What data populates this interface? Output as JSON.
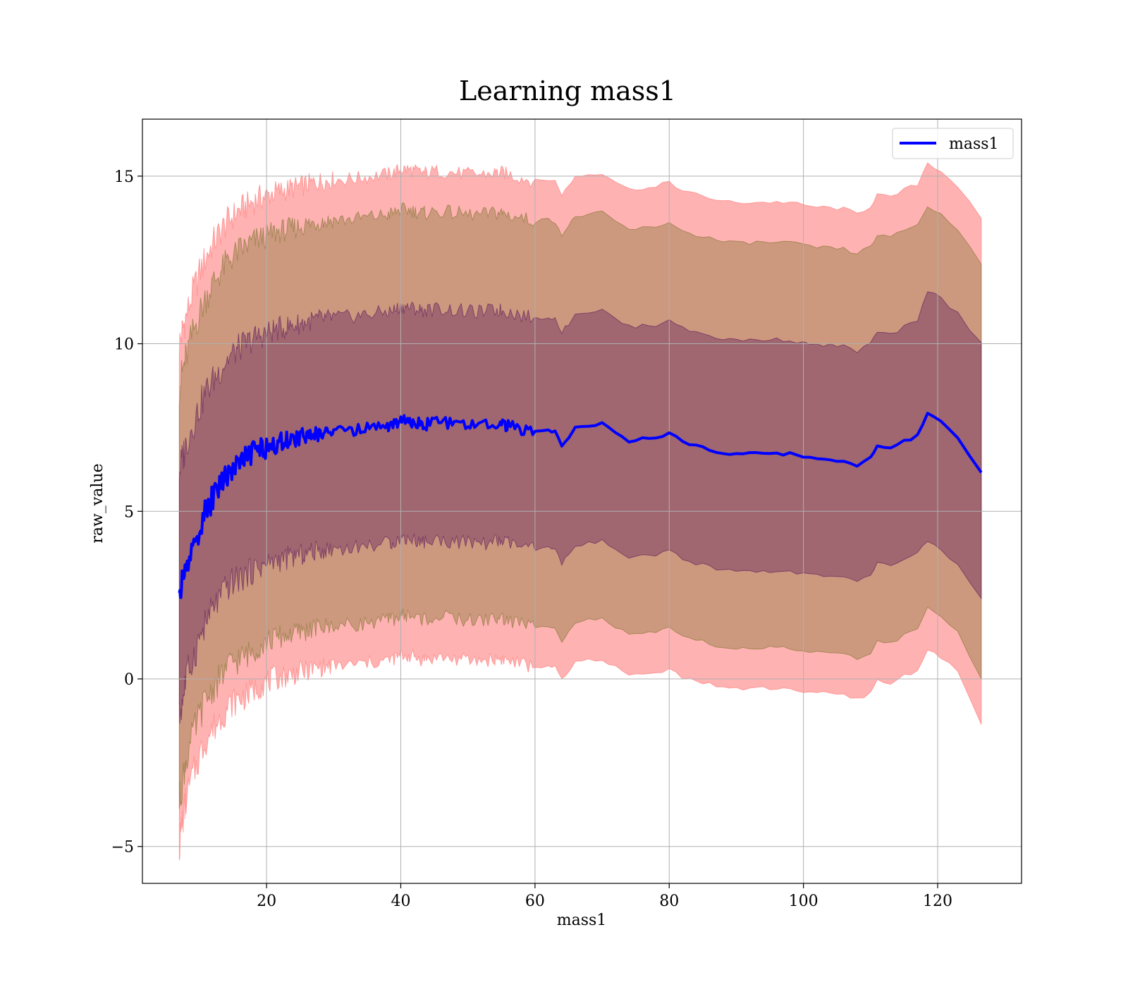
{
  "chart_data": {
    "type": "line",
    "title": "Learning mass1",
    "xlabel": "mass1",
    "ylabel": "raw_value",
    "xlim": [
      1.5,
      132.5
    ],
    "ylim": [
      -6.1,
      16.7
    ],
    "xticks": [
      20,
      40,
      60,
      80,
      100,
      120
    ],
    "yticks": [
      -5,
      0,
      5,
      10,
      15
    ],
    "ytick_labels": [
      "−5",
      "0",
      "5",
      "10",
      "15"
    ],
    "grid": true,
    "legend": {
      "placement": "top-right",
      "entries": [
        "mass1"
      ]
    },
    "series": [
      {
        "name": "mass1",
        "color": "#0000ff",
        "x": [
          7.0,
          7.5,
          8.0,
          9.0,
          10.0,
          11.0,
          12.0,
          13.0,
          14.0,
          15.0,
          16.0,
          17.0,
          18.0,
          19.0,
          20.0,
          21.0,
          22.0,
          23.0,
          24.0,
          25.0,
          26.0,
          27.0,
          28.0,
          29.0,
          30.0,
          32.0,
          34.0,
          36.0,
          38.0,
          39.0,
          40.0,
          41.0,
          42.0,
          43.0,
          44.0,
          46.0,
          48.0,
          50.0,
          52.0,
          54.0,
          55.0,
          56.0,
          58.0,
          60.0,
          62.0,
          63.0,
          64.0,
          65.0,
          66.0,
          68.0,
          70.0,
          72.0,
          74.0,
          76.0,
          78.0,
          80.0,
          82.0,
          84.0,
          86.0,
          88.0,
          90.0,
          92.0,
          94.0,
          96.0,
          98.0,
          100.0,
          102.0,
          104.0,
          106.0,
          108.0,
          110.0,
          111.0,
          113.0,
          115.0,
          117.0,
          118.5,
          120.5,
          123.0,
          126.5
        ],
        "y": [
          2.5,
          2.9,
          3.3,
          3.9,
          4.5,
          5.0,
          5.4,
          5.8,
          6.1,
          6.3,
          6.5,
          6.6,
          6.75,
          6.85,
          6.9,
          7.0,
          7.05,
          7.1,
          7.15,
          7.2,
          7.25,
          7.3,
          7.35,
          7.35,
          7.4,
          7.4,
          7.45,
          7.5,
          7.55,
          7.6,
          7.7,
          7.7,
          7.65,
          7.6,
          7.6,
          7.65,
          7.6,
          7.55,
          7.55,
          7.6,
          7.6,
          7.55,
          7.45,
          7.35,
          7.4,
          7.35,
          6.95,
          7.2,
          7.5,
          7.55,
          7.6,
          7.35,
          7.1,
          7.15,
          7.15,
          7.35,
          7.05,
          6.95,
          6.85,
          6.75,
          6.7,
          6.72,
          6.72,
          6.72,
          6.72,
          6.62,
          6.58,
          6.55,
          6.52,
          6.38,
          6.6,
          6.95,
          6.85,
          7.1,
          7.25,
          7.9,
          7.65,
          7.2,
          6.2
        ],
        "bands": [
          {
            "color": "#ff7f7f",
            "lower": [
              -5.0,
              -4.2,
              -3.6,
              -2.9,
              -2.3,
              -1.8,
              -1.5,
              -1.2,
              -0.9,
              -0.7,
              -0.6,
              -0.5,
              -0.35,
              -0.2,
              -0.1,
              0.0,
              0.05,
              0.1,
              0.15,
              0.2,
              0.25,
              0.3,
              0.35,
              0.35,
              0.4,
              0.4,
              0.45,
              0.5,
              0.55,
              0.6,
              0.7,
              0.7,
              0.65,
              0.6,
              0.6,
              0.65,
              0.6,
              0.55,
              0.55,
              0.6,
              0.6,
              0.55,
              0.45,
              0.35,
              0.4,
              0.35,
              -0.05,
              0.2,
              0.5,
              0.55,
              0.6,
              0.35,
              0.1,
              0.15,
              0.15,
              0.35,
              0.05,
              -0.05,
              -0.15,
              -0.25,
              -0.3,
              -0.28,
              -0.28,
              -0.28,
              -0.28,
              -0.38,
              -0.42,
              -0.45,
              -0.48,
              -0.62,
              -0.4,
              -0.05,
              -0.15,
              0.1,
              0.25,
              0.9,
              0.65,
              0.2,
              -1.3
            ],
            "upper": [
              10.0,
              10.4,
              10.8,
              11.5,
              12.1,
              12.6,
              13.0,
              13.3,
              13.6,
              13.8,
              14.0,
              14.1,
              14.25,
              14.35,
              14.4,
              14.5,
              14.55,
              14.6,
              14.65,
              14.7,
              14.75,
              14.8,
              14.85,
              14.85,
              14.9,
              14.9,
              14.95,
              15.0,
              15.05,
              15.1,
              15.2,
              15.2,
              15.15,
              15.1,
              15.1,
              15.15,
              15.1,
              15.05,
              15.05,
              15.1,
              15.1,
              15.05,
              14.95,
              14.85,
              14.9,
              14.85,
              14.45,
              14.7,
              15.0,
              15.05,
              15.1,
              14.85,
              14.6,
              14.65,
              14.65,
              14.85,
              14.55,
              14.45,
              14.35,
              14.25,
              14.2,
              14.22,
              14.22,
              14.22,
              14.22,
              14.12,
              14.08,
              14.05,
              14.02,
              13.88,
              14.1,
              14.45,
              14.35,
              14.6,
              14.75,
              15.4,
              15.15,
              14.7,
              13.7
            ]
          },
          {
            "color": "#8f7a3f",
            "lower": [
              -3.7,
              -3.0,
              -2.4,
              -1.7,
              -1.1,
              -0.6,
              -0.3,
              0.0,
              0.3,
              0.5,
              0.6,
              0.7,
              0.85,
              1.0,
              1.1,
              1.2,
              1.25,
              1.3,
              1.35,
              1.4,
              1.45,
              1.5,
              1.55,
              1.55,
              1.6,
              1.6,
              1.65,
              1.7,
              1.75,
              1.8,
              1.9,
              1.9,
              1.85,
              1.8,
              1.8,
              1.85,
              1.8,
              1.75,
              1.75,
              1.8,
              1.8,
              1.75,
              1.65,
              1.55,
              1.6,
              1.55,
              1.15,
              1.4,
              1.7,
              1.75,
              1.8,
              1.55,
              1.3,
              1.35,
              1.35,
              1.55,
              1.25,
              1.15,
              1.05,
              0.95,
              0.9,
              0.92,
              0.92,
              0.92,
              0.92,
              0.82,
              0.78,
              0.75,
              0.72,
              0.58,
              0.8,
              1.15,
              1.05,
              1.3,
              1.45,
              2.1,
              1.85,
              1.4,
              0.0
            ],
            "upper": [
              8.7,
              9.2,
              9.6,
              10.3,
              10.9,
              11.4,
              11.8,
              12.1,
              12.4,
              12.6,
              12.8,
              12.9,
              13.05,
              13.15,
              13.2,
              13.3,
              13.35,
              13.4,
              13.45,
              13.5,
              13.55,
              13.6,
              13.65,
              13.65,
              13.7,
              13.7,
              13.75,
              13.8,
              13.85,
              13.9,
              14.0,
              14.0,
              13.95,
              13.9,
              13.9,
              13.95,
              13.9,
              13.85,
              13.85,
              13.9,
              13.9,
              13.85,
              13.75,
              13.65,
              13.7,
              13.65,
              13.25,
              13.5,
              13.8,
              13.85,
              13.9,
              13.65,
              13.4,
              13.45,
              13.45,
              13.65,
              13.35,
              13.25,
              13.15,
              13.05,
              13.0,
              13.02,
              13.02,
              13.02,
              13.02,
              12.92,
              12.88,
              12.85,
              12.82,
              12.68,
              12.9,
              13.25,
              13.15,
              13.4,
              13.55,
              14.1,
              13.85,
              13.4,
              12.4
            ]
          },
          {
            "color": "#6a2a5f",
            "lower": [
              -1.2,
              -0.6,
              0.0,
              0.6,
              1.2,
              1.7,
              2.1,
              2.4,
              2.7,
              2.9,
              3.0,
              3.1,
              3.25,
              3.35,
              3.4,
              3.5,
              3.55,
              3.6,
              3.65,
              3.7,
              3.75,
              3.8,
              3.85,
              3.85,
              3.9,
              3.9,
              3.95,
              4.0,
              4.05,
              4.1,
              4.2,
              4.2,
              4.15,
              4.1,
              4.1,
              4.15,
              4.1,
              4.05,
              4.05,
              4.1,
              4.1,
              4.05,
              3.95,
              3.85,
              3.9,
              3.85,
              3.45,
              3.7,
              4.0,
              4.05,
              4.1,
              3.85,
              3.6,
              3.65,
              3.65,
              3.85,
              3.55,
              3.45,
              3.35,
              3.25,
              3.2,
              3.22,
              3.22,
              3.22,
              3.22,
              3.12,
              3.08,
              3.05,
              3.02,
              2.88,
              3.1,
              3.45,
              3.35,
              3.6,
              3.75,
              4.1,
              3.85,
              3.4,
              2.4
            ],
            "upper": [
              6.2,
              6.6,
              7.0,
              7.6,
              8.1,
              8.6,
              8.9,
              9.2,
              9.5,
              9.7,
              9.9,
              10.0,
              10.15,
              10.25,
              10.3,
              10.4,
              10.45,
              10.5,
              10.55,
              10.6,
              10.65,
              10.7,
              10.75,
              10.75,
              10.8,
              10.8,
              10.85,
              10.9,
              10.95,
              11.0,
              11.1,
              11.1,
              11.05,
              11.0,
              11.0,
              11.05,
              11.0,
              10.95,
              10.95,
              11.0,
              11.0,
              10.95,
              10.85,
              10.75,
              10.8,
              10.75,
              10.35,
              10.6,
              10.9,
              10.95,
              11.0,
              10.75,
              10.5,
              10.55,
              10.55,
              10.75,
              10.45,
              10.35,
              10.25,
              10.15,
              10.1,
              10.12,
              10.12,
              10.12,
              10.12,
              10.02,
              9.98,
              9.95,
              9.92,
              9.78,
              10.0,
              10.35,
              10.25,
              10.5,
              10.65,
              11.6,
              11.35,
              10.9,
              10.0
            ]
          }
        ]
      }
    ]
  }
}
